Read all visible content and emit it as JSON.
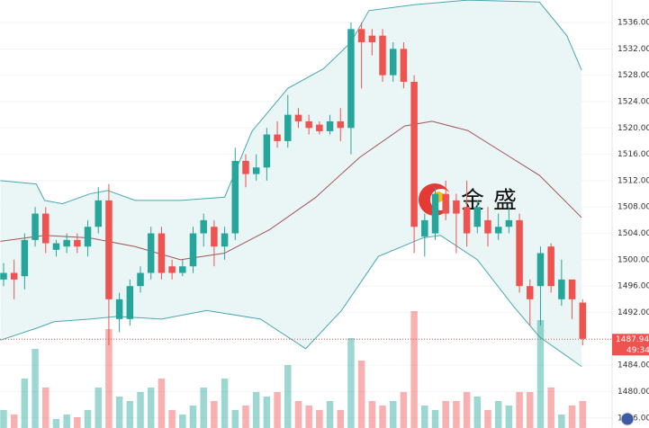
{
  "chart_data": {
    "type": "candlestick",
    "open": [
      1497,
      1498,
      1497.5,
      1503,
      1507,
      1501.5,
      1502,
      1503,
      1502,
      1505,
      1509,
      1491,
      1491,
      1496,
      1498,
      1504,
      1499,
      1498,
      1499,
      1504,
      1505,
      1502,
      1504,
      1515,
      1513,
      1514,
      1519,
      1518,
      1522,
      1521,
      1520.5,
      1519.5,
      1521,
      1520,
      1535,
      1534,
      1534,
      1528,
      1532,
      1527,
      1503.5,
      1504,
      1510,
      1509,
      1508,
      1505,
      1506,
      1504,
      1505,
      1506,
      1496,
      1496,
      1502,
      1494,
      1497,
      1493.5
    ],
    "high": [
      1499.5,
      1500,
      1504,
      1508,
      1508,
      1503,
      1504,
      1504,
      1506,
      1511,
      1511.5,
      1495,
      1497,
      1499,
      1505,
      1505,
      1500,
      1500,
      1505,
      1507,
      1506,
      1505,
      1517,
      1516,
      1516,
      1520,
      1521,
      1525,
      1523,
      1522,
      1521,
      1522,
      1523,
      1536,
      1536,
      1535,
      1535,
      1533,
      1533,
      1528,
      1507,
      1511,
      1512,
      1510,
      1512,
      1509,
      1508,
      1507,
      1508,
      1507,
      1497,
      1502,
      1502.5,
      1500,
      1497,
      1494
    ],
    "low": [
      1496,
      1494,
      1495.5,
      1502,
      1501,
      1500.5,
      1501,
      1501,
      1500.5,
      1504,
      1487,
      1489,
      1490,
      1495,
      1497,
      1497,
      1497,
      1497.5,
      1498,
      1502,
      1499,
      1500,
      1503,
      1511,
      1512,
      1512,
      1517,
      1517,
      1520,
      1519,
      1519,
      1519,
      1518,
      1516,
      1526,
      1531,
      1527,
      1527,
      1526,
      1501,
      1500.5,
      1503,
      1506,
      1501,
      1502,
      1504,
      1502,
      1503,
      1504,
      1495,
      1490,
      1490,
      1495,
      1493,
      1491,
      1487
    ],
    "close": [
      1498,
      1497,
      1503,
      1507,
      1502.5,
      1502.5,
      1503,
      1502,
      1505,
      1509,
      1494,
      1494,
      1496,
      1498,
      1504,
      1498,
      1498,
      1499,
      1504,
      1506,
      1502,
      1504,
      1515,
      1513,
      1514,
      1519,
      1518,
      1522,
      1521,
      1520,
      1519.5,
      1521,
      1520,
      1535,
      1533,
      1533,
      1528,
      1532,
      1527,
      1505,
      1506,
      1510,
      1507,
      1507,
      1504,
      1508,
      1504,
      1505,
      1506,
      1496,
      1494,
      1501,
      1496,
      1497,
      1494,
      1488
    ],
    "volume": [
      20,
      15,
      55,
      88,
      45,
      10,
      15,
      12,
      20,
      45,
      110,
      35,
      30,
      40,
      45,
      55,
      20,
      15,
      25,
      45,
      30,
      55,
      20,
      25,
      40,
      35,
      40,
      70,
      30,
      25,
      20,
      30,
      20,
      100,
      75,
      30,
      25,
      30,
      40,
      130,
      25,
      20,
      30,
      30,
      40,
      35,
      20,
      30,
      25,
      40,
      40,
      120,
      45,
      15,
      25,
      30
    ],
    "up_color": "#26a69a",
    "down_color": "#ef5350",
    "xlim": [
      -0.34,
      57.8
    ],
    "ylim": [
      1474.47,
      1539.41
    ],
    "volume_ylim": [
      0,
      476
    ],
    "yticks": [
      {
        "value": 1476,
        "label": "1476.00"
      },
      {
        "value": 1480,
        "label": "1480.00"
      },
      {
        "value": 1484,
        "label": "1484.00"
      },
      {
        "value": 1488,
        "label": "1488.00"
      },
      {
        "value": 1492,
        "label": "1492.00"
      },
      {
        "value": 1496,
        "label": "1496.00"
      },
      {
        "value": 1500,
        "label": "1500.00"
      },
      {
        "value": 1504,
        "label": "1504.00"
      },
      {
        "value": 1508,
        "label": "1508.00"
      },
      {
        "value": 1512,
        "label": "1512.00"
      },
      {
        "value": 1516,
        "label": "1516.00"
      },
      {
        "value": 1520,
        "label": "1520.00"
      },
      {
        "value": 1524,
        "label": "1524.00"
      },
      {
        "value": 1528,
        "label": "1528.00"
      },
      {
        "value": 1532,
        "label": "1532.00"
      },
      {
        "value": 1536,
        "label": "1536.00"
      }
    ],
    "grid": true,
    "bollinger": {
      "color": "#4aa8b0",
      "middle_color": "#a0555a",
      "fill": "#eaf5f6",
      "upper": {
        "x": [
          -0.3,
          3.1,
          3.9,
          5.6,
          8.2,
          9.9,
          12.5,
          16.8,
          21,
          23.6,
          27,
          30.4,
          33,
          34.7,
          39,
          44.1,
          50.9,
          53.5,
          54.9
        ],
        "values": [
          1512,
          1511.5,
          1509,
          1508.5,
          1510,
          1510.5,
          1509,
          1509,
          1509.5,
          1519.5,
          1526,
          1529,
          1533,
          1537.8,
          1538.7,
          1539.4,
          1539.1,
          1534,
          1528.8
        ]
      },
      "middle": {
        "x": [
          -0.3,
          3.9,
          8.2,
          12.5,
          16.8,
          21,
          25.3,
          29.6,
          33.8,
          38.1,
          40.7,
          44.1,
          47.5,
          50.9,
          54.9
        ],
        "values": [
          1502.8,
          1503.7,
          1503.3,
          1502,
          1500,
          1501,
          1504.6,
          1509.4,
          1515.5,
          1520.3,
          1521,
          1519.6,
          1516.2,
          1512.8,
          1506.4
        ]
      },
      "lower": {
        "x": [
          -0.3,
          3.1,
          4.8,
          8.2,
          10.8,
          15,
          19.3,
          24.4,
          28.7,
          32.1,
          35.6,
          39.8,
          41.5,
          45,
          48.4,
          50.9,
          54.9
        ],
        "values": [
          1487.8,
          1489.6,
          1490.6,
          1491,
          1491.4,
          1491,
          1492.3,
          1491,
          1486.5,
          1492.3,
          1500.5,
          1503.3,
          1503.7,
          1500,
          1493,
          1488.3,
          1483.8
        ]
      }
    },
    "last_price": 1487.94,
    "countdown": "49:34",
    "watermark": "金盛"
  }
}
